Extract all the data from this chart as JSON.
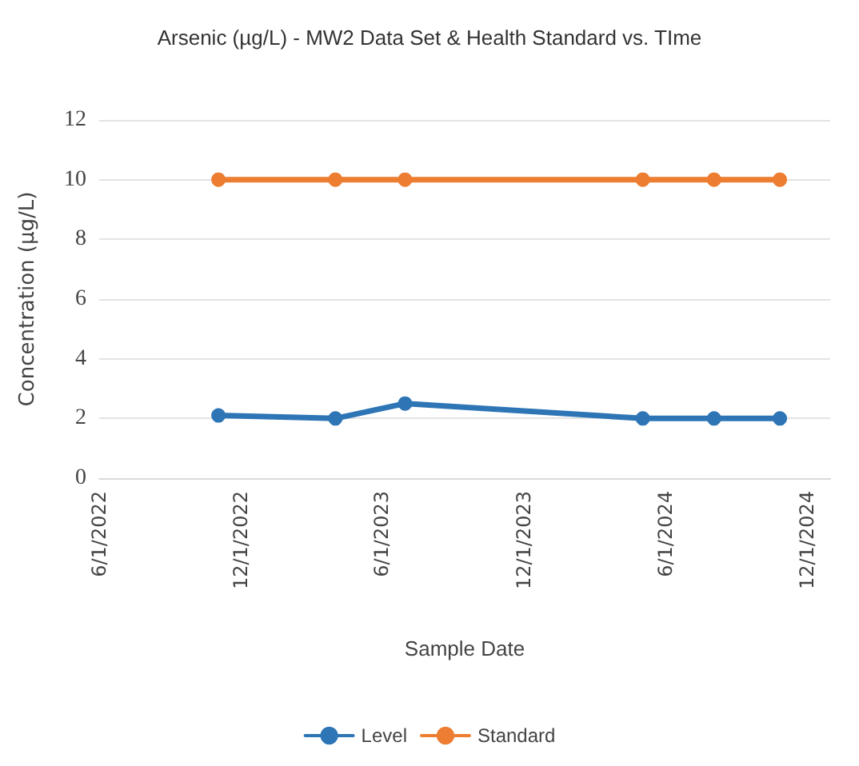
{
  "chart_data": {
    "type": "line",
    "title": "Arsenic (µg/L) - MW2 Data Set & Health Standard vs. TIme",
    "xlabel": "Sample Date",
    "ylabel": "Concentration (µg/L)",
    "x": [
      "2022-11-02",
      "2023-04-02",
      "2023-07-01",
      "2024-05-03",
      "2024-08-03",
      "2024-10-27"
    ],
    "series": [
      {
        "name": "Level",
        "color": "#2e75b6",
        "values": [
          2.1,
          2,
          2.5,
          2,
          2,
          2
        ]
      },
      {
        "name": "Standard",
        "color": "#ed7d31",
        "values": [
          10,
          10,
          10,
          10,
          10,
          10
        ]
      }
    ],
    "xlim": [
      "2022-06-01",
      "2024-12-31"
    ],
    "xticks": [
      {
        "value": "2022-06-01",
        "label": "6/1/2022"
      },
      {
        "value": "2022-12-01",
        "label": "12/1/2022"
      },
      {
        "value": "2023-06-01",
        "label": "6/1/2023"
      },
      {
        "value": "2023-12-01",
        "label": "12/1/2023"
      },
      {
        "value": "2024-06-01",
        "label": "6/1/2024"
      },
      {
        "value": "2024-12-01",
        "label": "12/1/2024"
      }
    ],
    "ylim": [
      0,
      12
    ],
    "yticks": [
      0,
      2,
      4,
      6,
      8,
      10,
      12
    ],
    "grid": "y",
    "legend": "bottom",
    "marker": "circle",
    "line_style": "solid"
  }
}
